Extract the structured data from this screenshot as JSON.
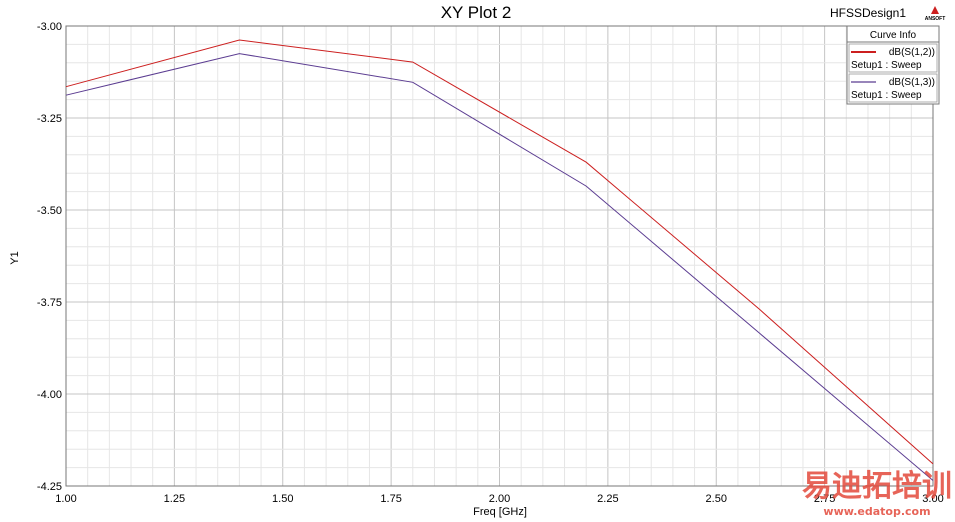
{
  "header": {
    "design_name": "HFSSDesign1",
    "brand": "ANSOFT"
  },
  "watermark": {
    "text": "易迪拓培训",
    "url": "www.edatop.com",
    "color": "#e34a3c"
  },
  "chart_data": {
    "type": "line",
    "title": "XY Plot 2",
    "xlabel": "Freq [GHz]",
    "ylabel": "Y1",
    "xlim": [
      1.0,
      3.0
    ],
    "ylim": [
      -4.25,
      -3.0
    ],
    "x_ticks": [
      "1.00",
      "1.25",
      "1.50",
      "1.75",
      "2.00",
      "2.25",
      "2.50",
      "2.75",
      "3.00"
    ],
    "y_ticks": [
      "-3.00",
      "-3.25",
      "-3.50",
      "-3.75",
      "-4.00",
      "-4.25"
    ],
    "grid": true,
    "legend": {
      "title": "Curve Info",
      "placement": "top-right"
    },
    "series": [
      {
        "name": "dB(S(1,2))",
        "setup": "Setup1 : Sweep",
        "color": "#cc1f1f",
        "x": [
          1.0,
          1.4,
          1.8,
          2.2,
          2.6,
          3.0
        ],
        "y": [
          -3.165,
          -3.038,
          -3.098,
          -3.37,
          -3.77,
          -4.19
        ]
      },
      {
        "name": "dB(S(1,3))",
        "setup": "Setup1 : Sweep",
        "color": "#5b3c91",
        "x": [
          1.0,
          1.4,
          1.8,
          2.2,
          2.6,
          3.0
        ],
        "y": [
          -3.188,
          -3.075,
          -3.153,
          -3.435,
          -3.835,
          -4.235
        ]
      }
    ]
  }
}
